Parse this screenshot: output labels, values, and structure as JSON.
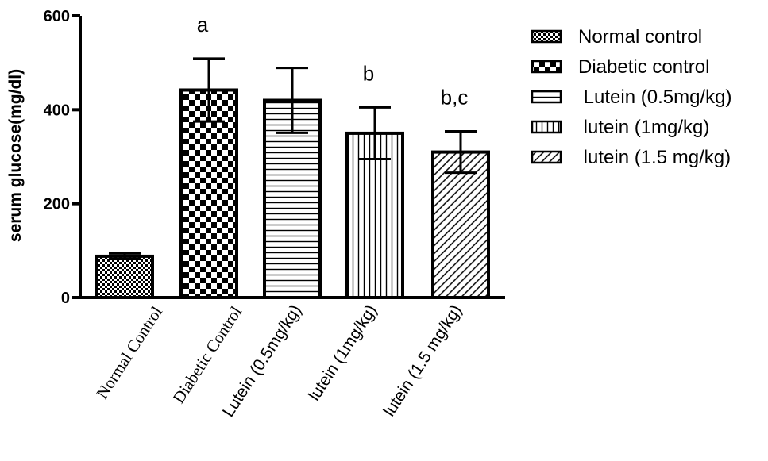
{
  "chart_data": {
    "type": "bar",
    "ylabel": "serum glucose(mg/dl)",
    "ylim": [
      0,
      600
    ],
    "yticks": [
      0,
      200,
      400,
      600
    ],
    "categories": [
      "Normal Control",
      "Diabetic Control",
      "Lutein (0.5mg/kg)",
      "lutein (1mg/kg)",
      "lutein (1.5 mg/kg)"
    ],
    "values": [
      88,
      442,
      420,
      350,
      310
    ],
    "errors": [
      6,
      67,
      69,
      55,
      44
    ],
    "annotations": [
      "",
      "a",
      "",
      "b",
      "b,c"
    ],
    "legend": [
      "Normal control",
      "Diabetic control",
      " Lutein (0.5mg/kg)",
      " lutein (1mg/kg)",
      " lutein (1.5 mg/kg)"
    ],
    "patterns": [
      "fine-check",
      "coarse-check",
      "horizontal-lines",
      "vertical-lines",
      "diagonal-lines"
    ],
    "legend_position": "right",
    "colors": {
      "line": "#000000",
      "fill": "#ffffff"
    }
  }
}
